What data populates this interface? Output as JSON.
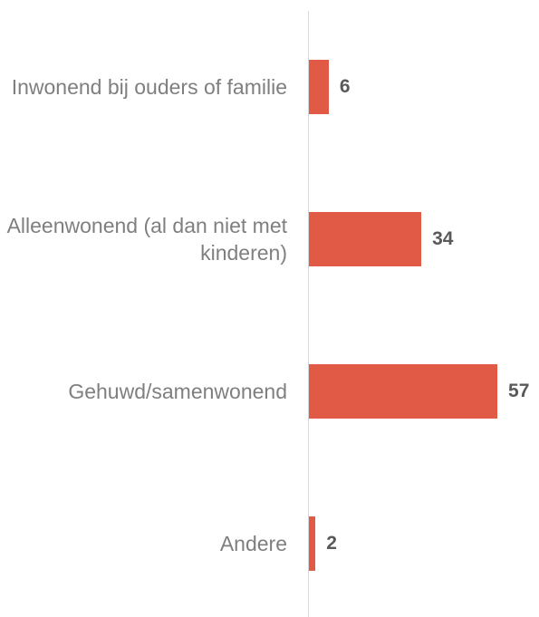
{
  "chart_data": {
    "type": "bar",
    "orientation": "horizontal",
    "categories": [
      "Inwonend bij ouders of familie",
      "Alleenwonend (al dan niet met kinderen)",
      "Gehuwd/samenwonend",
      "Andere"
    ],
    "values": [
      6,
      34,
      57,
      2
    ],
    "color": "#e05a45"
  }
}
